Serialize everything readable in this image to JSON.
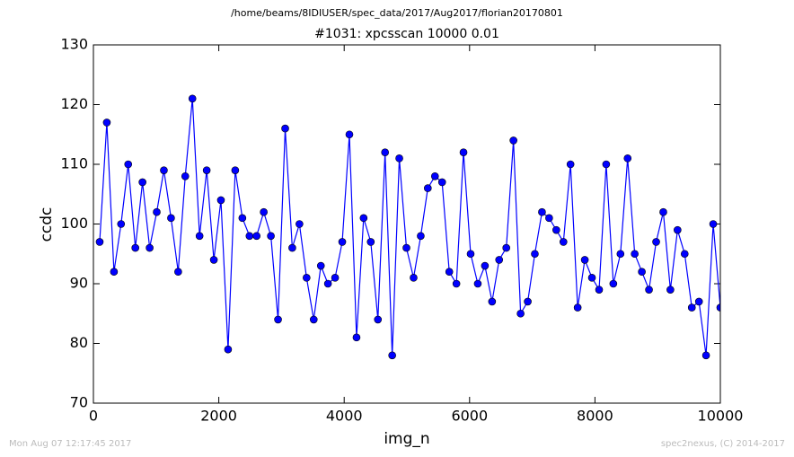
{
  "chart_data": {
    "type": "line",
    "suptitle": "/home/beams/8IDIUSER/spec_data/2017/Aug2017/florian20170801",
    "title": "#1031: xpcsscan 10000 0.01",
    "x_label": "img_n",
    "y_label": "ccdc",
    "footer_left": "Mon Aug 07 12:17:45 2017",
    "footer_right": "spec2nexus, (C) 2014-2017",
    "x": [
      100,
      214,
      328,
      441,
      555,
      669,
      783,
      897,
      1010,
      1124,
      1238,
      1352,
      1465,
      1579,
      1693,
      1807,
      1921,
      2034,
      2148,
      2262,
      2376,
      2490,
      2603,
      2717,
      2831,
      2945,
      3059,
      3172,
      3286,
      3400,
      3514,
      3628,
      3741,
      3855,
      3969,
      4083,
      4197,
      4310,
      4424,
      4538,
      4652,
      4766,
      4879,
      4993,
      5107,
      5221,
      5334,
      5448,
      5562,
      5676,
      5790,
      5903,
      6017,
      6131,
      6245,
      6359,
      6472,
      6586,
      6700,
      6814,
      6928,
      7041,
      7155,
      7269,
      7383,
      7497,
      7610,
      7724,
      7838,
      7952,
      8066,
      8179,
      8293,
      8407,
      8521,
      8634,
      8748,
      8862,
      8976,
      9090,
      9203,
      9317,
      9431,
      9545,
      9659,
      9772,
      9886,
      10000
    ],
    "series": [
      {
        "name": "ccdc",
        "color": "#0000ff",
        "values": [
          97,
          117,
          92,
          100,
          110,
          96,
          107,
          96,
          102,
          109,
          101,
          92,
          108,
          121,
          98,
          109,
          94,
          104,
          79,
          109,
          101,
          98,
          98,
          102,
          98,
          84,
          116,
          96,
          100,
          91,
          84,
          93,
          90,
          91,
          97,
          115,
          81,
          101,
          97,
          84,
          112,
          78,
          111,
          96,
          91,
          98,
          106,
          108,
          107,
          92,
          90,
          112,
          95,
          90,
          93,
          87,
          94,
          96,
          114,
          85,
          87,
          95,
          102,
          101,
          99,
          97,
          110,
          86,
          94,
          91,
          89,
          110,
          90,
          95,
          111,
          95,
          92,
          89,
          97,
          102,
          89,
          99,
          95,
          86,
          87,
          78,
          100,
          86
        ]
      }
    ],
    "xlim": [
      0,
      10000
    ],
    "xticks": [
      0,
      2000,
      4000,
      6000,
      8000,
      10000
    ],
    "ylim": [
      70,
      130
    ],
    "yticks": [
      70,
      80,
      90,
      100,
      110,
      120,
      130
    ],
    "grid": false
  }
}
